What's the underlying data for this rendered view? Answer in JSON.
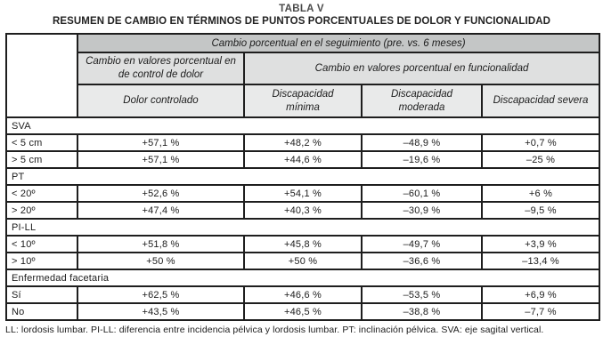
{
  "title": "TABLA V",
  "subtitle": "RESUMEN DE CAMBIO EN TÉRMINOS DE PUNTOS PORCENTUALES DE DOLOR Y FUNCIONALIDAD",
  "header": {
    "top": "Cambio porcentual en el seguimiento (pre. vs. 6 meses)",
    "group_pain": "Cambio en valores porcentual en de control de dolor",
    "group_functionality": "Cambio en valores porcentual en  funcionalidad",
    "columns": [
      "Dolor controlado",
      "Discapacidad mínima",
      "Discapacidad moderada",
      "Discapacidad severa"
    ]
  },
  "sections": [
    {
      "name": "SVA",
      "rows": [
        {
          "label": "< 5 cm",
          "values": [
            "+57,1 %",
            "+48,2 %",
            "–48,9 %",
            "+0,7 %"
          ]
        },
        {
          "label": "> 5 cm",
          "values": [
            "+57,1 %",
            "+44,6 %",
            "–19,6 %",
            "–25 %"
          ]
        }
      ]
    },
    {
      "name": "PT",
      "rows": [
        {
          "label": "< 20º",
          "values": [
            "+52,6 %",
            "+54,1 %",
            "–60,1 %",
            "+6 %"
          ]
        },
        {
          "label": "> 20º",
          "values": [
            "+47,4 %",
            "+40,3 %",
            "–30,9 %",
            "–9,5 %"
          ]
        }
      ]
    },
    {
      "name": "PI-LL",
      "rows": [
        {
          "label": "< 10º",
          "values": [
            "+51,8 %",
            "+45,8 %",
            "–49,7 %",
            "+3,9 %"
          ]
        },
        {
          "label": "> 10º",
          "values": [
            "+50 %",
            "+50 %",
            "–36,6 %",
            "–13,4 %"
          ]
        }
      ]
    },
    {
      "name": "Enfermedad facetaria",
      "rows": [
        {
          "label": "Sí",
          "values": [
            "+62,5 %",
            "+46,6 %",
            "–53,5 %",
            "+6,9 %"
          ]
        },
        {
          "label": "No",
          "values": [
            "+43,5 %",
            "+46,5 %",
            "–38,8 %",
            "–7,7 %"
          ]
        }
      ]
    }
  ],
  "footnote": "LL: lordosis lumbar. PI-LL: diferencia entre incidencia pélvica y lordosis lumbar. PT: inclinación pélvica. SVA: eje sagital vertical.",
  "colors": {
    "header_band_dark": "#c4c6c6",
    "header_band_mid": "#dfe0e0",
    "header_band_light": "#e9eaea",
    "border": "#1e1e1e",
    "title_text": "#4a4a4a",
    "body_text": "#1c1c1c"
  }
}
